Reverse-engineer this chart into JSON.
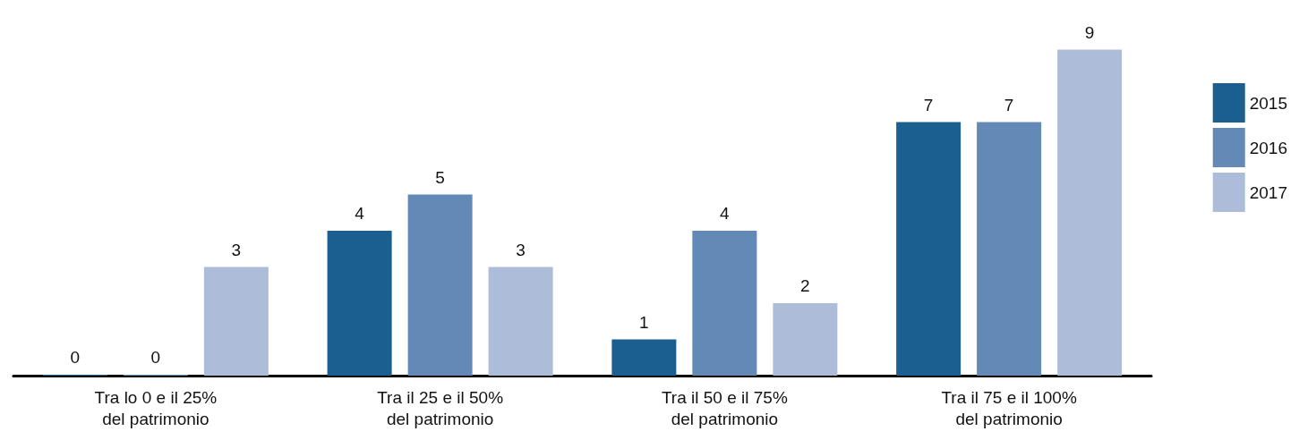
{
  "chart_data": {
    "type": "bar",
    "categories": [
      "Tra lo 0 e il 25%\ndel patrimonio",
      "Tra il 25 e il 50%\ndel patrimonio",
      "Tra il 50 e il 75%\ndel patrimonio",
      "Tra il 75 e il 100%\ndel patrimonio"
    ],
    "series": [
      {
        "name": "2015",
        "color": "#1b5f91",
        "values": [
          0,
          4,
          1,
          7
        ]
      },
      {
        "name": "2016",
        "color": "#6389b6",
        "values": [
          0,
          5,
          4,
          7
        ]
      },
      {
        "name": "2017",
        "color": "#adbdd9",
        "values": [
          3,
          3,
          2,
          9
        ]
      }
    ],
    "data_labels": true,
    "legend": "right"
  }
}
